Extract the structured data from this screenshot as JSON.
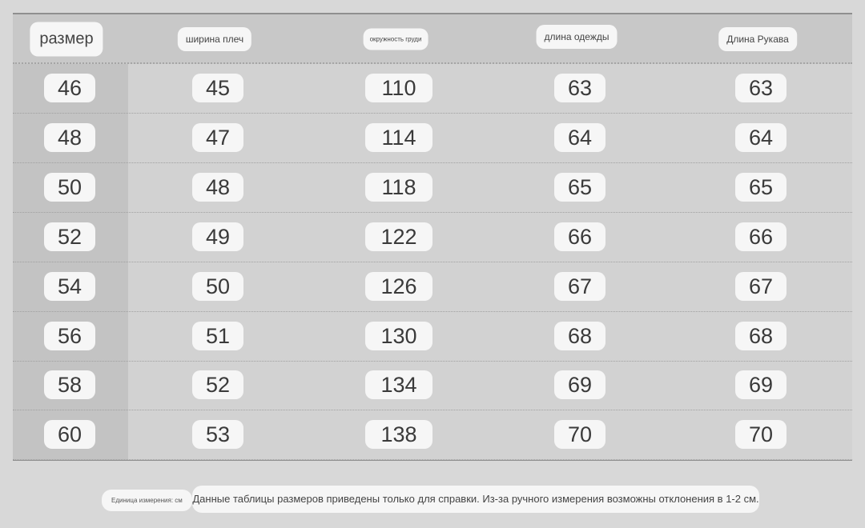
{
  "headers": [
    "размер",
    "ширина плеч",
    "окружность груди",
    "длина одежды",
    "Длина Рукава"
  ],
  "rows": [
    [
      "46",
      "45",
      "110",
      "63",
      "63"
    ],
    [
      "48",
      "47",
      "114",
      "64",
      "64"
    ],
    [
      "50",
      "48",
      "118",
      "65",
      "65"
    ],
    [
      "52",
      "49",
      "122",
      "66",
      "66"
    ],
    [
      "54",
      "50",
      "126",
      "67",
      "67"
    ],
    [
      "56",
      "51",
      "130",
      "68",
      "68"
    ],
    [
      "58",
      "52",
      "134",
      "69",
      "69"
    ],
    [
      "60",
      "53",
      "138",
      "70",
      "70"
    ]
  ],
  "footer": {
    "unit": "Единица измерения: см",
    "note": "Данные таблицы размеров приведены только для справки. Из-за ручного измерения возможны отклонения в 1-2 см."
  },
  "colors": {
    "background": "#d8d8d8",
    "first_column": "#c3c3c3",
    "pill": "#f6f6f6"
  }
}
